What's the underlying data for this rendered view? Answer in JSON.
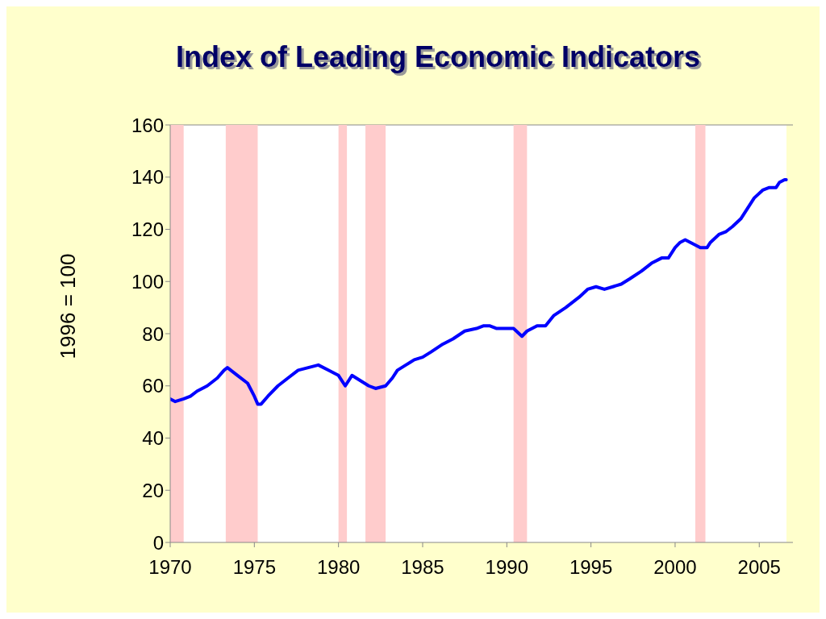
{
  "chart_data": {
    "type": "line",
    "title": "Index of Leading Economic Indicators",
    "ylabel": "1996 = 100",
    "x": [
      1970.0,
      1970.3,
      1970.8,
      1971.2,
      1971.6,
      1972.2,
      1972.8,
      1973.2,
      1973.4,
      1974.0,
      1974.6,
      1975.0,
      1975.2,
      1975.4,
      1975.8,
      1976.4,
      1977.0,
      1977.6,
      1978.2,
      1978.8,
      1979.4,
      1980.0,
      1980.4,
      1980.8,
      1981.3,
      1981.8,
      1982.2,
      1982.8,
      1983.2,
      1983.5,
      1984.0,
      1984.5,
      1985.0,
      1985.5,
      1986.2,
      1986.8,
      1987.5,
      1988.2,
      1988.6,
      1989.0,
      1989.4,
      1990.0,
      1990.4,
      1990.9,
      1991.2,
      1991.8,
      1992.3,
      1992.8,
      1993.5,
      1994.3,
      1994.8,
      1995.3,
      1995.8,
      1996.3,
      1996.8,
      1997.3,
      1998.0,
      1998.6,
      1999.2,
      1999.6,
      2000.0,
      2000.3,
      2000.6,
      2001.2,
      2001.5,
      2001.9,
      2002.1,
      2002.6,
      2003.0,
      2003.4,
      2003.9,
      2004.3,
      2004.7,
      2005.2,
      2005.6,
      2006.0,
      2006.2,
      2006.5,
      2006.6
    ],
    "series": [
      {
        "color": "#0000ff",
        "values": [
          55,
          54,
          55,
          56,
          58,
          60,
          63,
          66,
          67,
          64,
          61,
          56,
          53,
          53,
          56,
          60,
          63,
          66,
          67,
          68,
          66,
          64,
          60,
          64,
          62,
          60,
          59,
          60,
          63,
          66,
          68,
          70,
          71,
          73,
          76,
          78,
          81,
          82,
          83,
          83,
          82,
          82,
          82,
          79,
          81,
          83,
          83,
          87,
          90,
          94,
          97,
          98,
          97,
          98,
          99,
          101,
          104,
          107,
          109,
          109,
          113,
          115,
          116,
          114,
          113,
          113,
          115,
          118,
          119,
          121,
          124,
          128,
          132,
          135,
          136,
          136,
          138,
          139,
          139
        ]
      }
    ],
    "xlim": [
      1970,
      2007
    ],
    "xticks": [
      1970,
      1975,
      1980,
      1985,
      1990,
      1995,
      2000,
      2005
    ],
    "ylim": [
      0,
      160
    ],
    "yticks": [
      0,
      20,
      40,
      60,
      80,
      100,
      120,
      140,
      160
    ],
    "grid": false,
    "legend": false,
    "marker": "none",
    "line_style": "solid",
    "bands": [
      {
        "axis": "x",
        "from": 1969.9,
        "to": 1970.8,
        "color": "#ffcccc"
      },
      {
        "axis": "x",
        "from": 1973.3,
        "to": 1975.2,
        "color": "#ffcccc"
      },
      {
        "axis": "x",
        "from": 1980.0,
        "to": 1980.5,
        "color": "#ffcccc"
      },
      {
        "axis": "x",
        "from": 1981.6,
        "to": 1982.8,
        "color": "#ffcccc"
      },
      {
        "axis": "x",
        "from": 1990.4,
        "to": 1991.2,
        "color": "#ffcccc"
      },
      {
        "axis": "x",
        "from": 2001.2,
        "to": 2001.8,
        "color": "#ffcccc"
      }
    ]
  }
}
